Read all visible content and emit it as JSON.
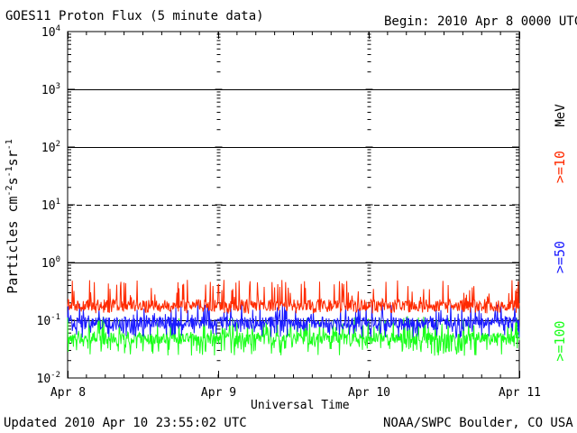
{
  "header": {
    "title": "GOES11 Proton Flux (5 minute data)",
    "begin": "Begin: 2010 Apr 8 0000 UTC"
  },
  "footer": {
    "updated": "Updated 2010 Apr 10 23:55:02 UTC",
    "source": "NOAA/SWPC Boulder, CO USA"
  },
  "chart_data": {
    "type": "line",
    "title": "GOES11 Proton Flux (5 minute data)",
    "xlabel": "Universal Time",
    "ylabel_main": "Particles cm",
    "ylabel_exponents": [
      "-2",
      "-1",
      "-1"
    ],
    "ylabel_units": [
      "s",
      "sr"
    ],
    "yscale": "log",
    "ylim": [
      0.01,
      10000
    ],
    "yticks": [
      {
        "base": "10",
        "exp": "-2",
        "value": 0.01
      },
      {
        "base": "10",
        "exp": "-1",
        "value": 0.1
      },
      {
        "base": "10",
        "exp": "0",
        "value": 1
      },
      {
        "base": "10",
        "exp": "1",
        "value": 10
      },
      {
        "base": "10",
        "exp": "2",
        "value": 100
      },
      {
        "base": "10",
        "exp": "3",
        "value": 1000
      },
      {
        "base": "10",
        "exp": "4",
        "value": 10000
      }
    ],
    "xlim": [
      "2010-04-08T00:00",
      "2010-04-11T00:00"
    ],
    "xticks": [
      {
        "label": "Apr 8",
        "date": "2010-04-08T00:00"
      },
      {
        "label": "Apr 9",
        "date": "2010-04-09T00:00"
      },
      {
        "label": "Apr 10",
        "date": "2010-04-10T00:00"
      },
      {
        "label": "Apr 11",
        "date": "2010-04-11T00:00"
      }
    ],
    "threshold_lines": [
      {
        "value": 1000,
        "style": "solid"
      },
      {
        "value": 100,
        "style": "solid"
      },
      {
        "value": 10,
        "style": "dashed"
      },
      {
        "value": 1,
        "style": "solid"
      },
      {
        "value": 0.1,
        "style": "solid"
      }
    ],
    "units_label": "MeV",
    "series": [
      {
        "name": ">=10",
        "color": "#ff2a00",
        "baseline": 0.17,
        "low": 0.13,
        "high": 0.5
      },
      {
        "name": ">=50",
        "color": "#1a1aff",
        "baseline": 0.085,
        "low": 0.05,
        "high": 0.2
      },
      {
        "name": ">=100",
        "color": "#1aff1a",
        "baseline": 0.045,
        "low": 0.024,
        "high": 0.12
      }
    ]
  }
}
